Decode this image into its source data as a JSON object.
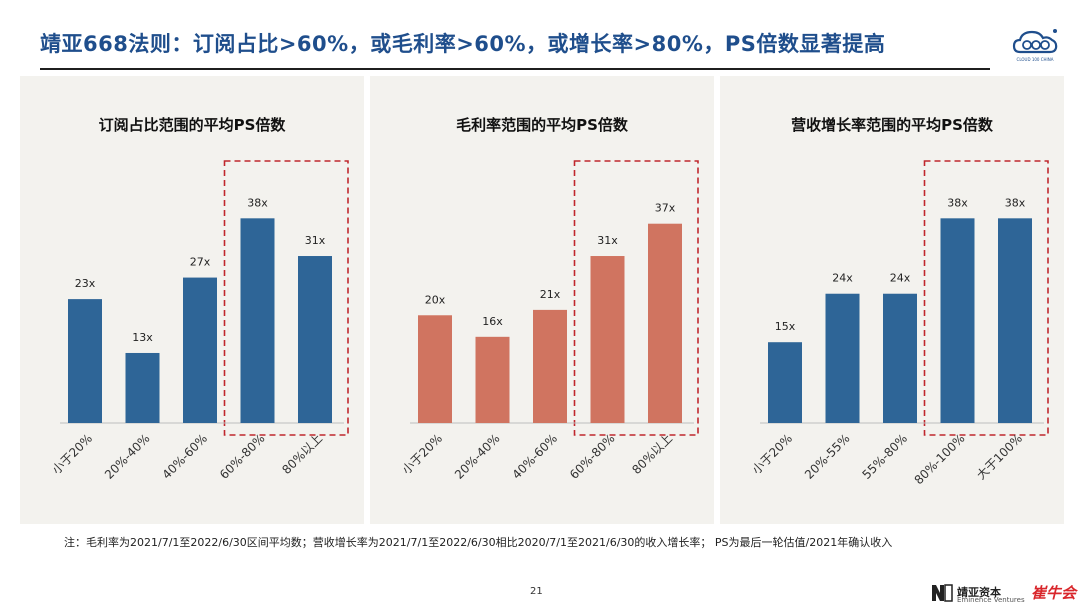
{
  "header": {
    "title": "靖亚668法则：订阅占比>60%，或毛利率>60%，或增长率>80%，PS倍数显著提高",
    "logo_text": "CLOUD 100 CHINA"
  },
  "colors": {
    "blue": "#2e6597",
    "salmon": "#d07460",
    "highlight_box": "#c0272d",
    "title": "#1f4e8c"
  },
  "chart_data": [
    {
      "type": "bar",
      "title": "订阅占比范围的平均PS倍数",
      "categories": [
        "小于20%",
        "20%-40%",
        "40%-60%",
        "60%-80%",
        "80%以上"
      ],
      "values": [
        23,
        13,
        27,
        38,
        31
      ],
      "labels": [
        "23x",
        "13x",
        "27x",
        "38x",
        "31x"
      ],
      "highlight": [
        3,
        4
      ],
      "color": "#2e6597",
      "ylim": [
        0,
        44
      ]
    },
    {
      "type": "bar",
      "title": "毛利率范围的平均PS倍数",
      "categories": [
        "小于20%",
        "20%-40%",
        "40%-60%",
        "60%-80%",
        "80%以上"
      ],
      "values": [
        20,
        16,
        21,
        31,
        37
      ],
      "labels": [
        "20x",
        "16x",
        "21x",
        "31x",
        "37x"
      ],
      "highlight": [
        3,
        4
      ],
      "color": "#d07460",
      "ylim": [
        0,
        44
      ]
    },
    {
      "type": "bar",
      "title": "营收增长率范围的平均PS倍数",
      "categories": [
        "小于20%",
        "20%-55%",
        "55%-80%",
        "80%-100%",
        "大于100%"
      ],
      "values": [
        15,
        24,
        24,
        38,
        38
      ],
      "labels": [
        "15x",
        "24x",
        "24x",
        "38x",
        "38x"
      ],
      "highlight": [
        3,
        4
      ],
      "color": "#2e6597",
      "ylim": [
        0,
        44
      ]
    }
  ],
  "footer": {
    "note": "注：毛利率为2021/7/1至2022/6/30区间平均数；营收增长率为2021/7/1至2022/6/30相比2020/7/1至2021/6/30的收入增长率； PS为最后一轮估值/2021年确认收入",
    "page_number": "21",
    "brand_name": "靖亚资本",
    "brand_sub": "Eminence Ventures",
    "brand_mark": "崔牛会"
  }
}
